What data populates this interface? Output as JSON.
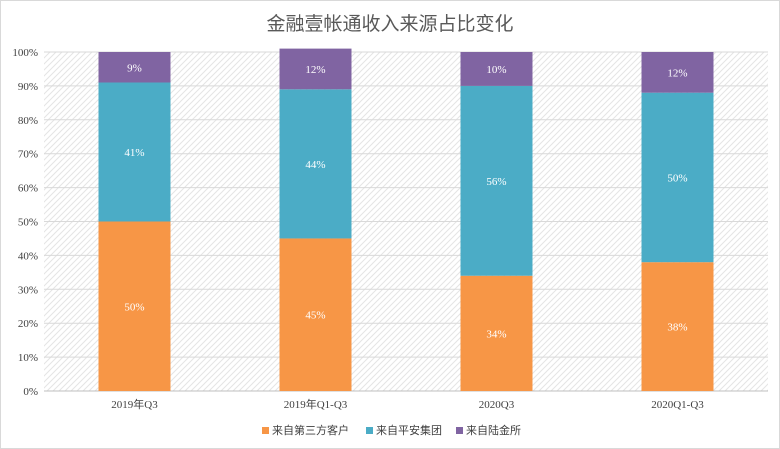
{
  "chart_data": {
    "type": "bar",
    "stacked": true,
    "title": "金融壹帐通收入来源占比变化",
    "categories": [
      "2019年Q3",
      "2019年Q1-Q3",
      "2020Q3",
      "2020Q1-Q3"
    ],
    "series": [
      {
        "name": "来自第三方客户",
        "color": "#f79646",
        "values": [
          50,
          45,
          34,
          38
        ],
        "labels": [
          "50%",
          "45%",
          "34%",
          "38%"
        ]
      },
      {
        "name": "来自平安集团",
        "color": "#4bacc6",
        "values": [
          41,
          44,
          56,
          50
        ],
        "labels": [
          "41%",
          "44%",
          "56%",
          "50%"
        ]
      },
      {
        "name": "来自陆金所",
        "color": "#8064a2",
        "values": [
          9,
          12,
          10,
          12
        ],
        "labels": [
          "9%",
          "12%",
          "10%",
          "12%"
        ]
      }
    ],
    "ylim": [
      0,
      100
    ],
    "yticks": [
      "0%",
      "10%",
      "20%",
      "30%",
      "40%",
      "50%",
      "60%",
      "70%",
      "80%",
      "90%",
      "100%"
    ],
    "grid": true,
    "legend_position": "bottom"
  }
}
